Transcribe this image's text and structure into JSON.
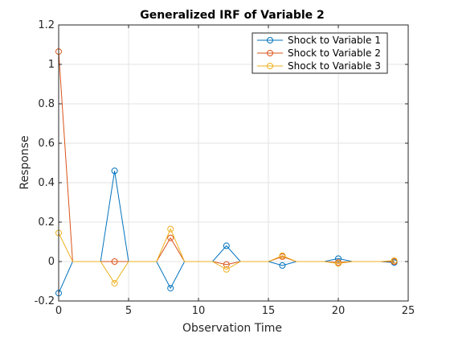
{
  "chart_data": {
    "type": "line",
    "title": "Generalized IRF of Variable 2",
    "xlabel": "Observation Time",
    "ylabel": "Response",
    "xlim": [
      0,
      25
    ],
    "ylim": [
      -0.2,
      1.2
    ],
    "xticks": [
      0,
      5,
      10,
      15,
      20,
      25
    ],
    "yticks": [
      -0.2,
      0,
      0.2,
      0.4,
      0.6,
      0.8,
      1,
      1.2
    ],
    "xtick_labels": [
      "0",
      "5",
      "10",
      "15",
      "20",
      "25"
    ],
    "ytick_labels": [
      "-0.2",
      "0",
      "0.2",
      "0.4",
      "0.6",
      "0.8",
      "1",
      "1.2"
    ],
    "grid": true,
    "legend_position": "top-right",
    "marker": "circle",
    "x": [
      0,
      1,
      2,
      3,
      4,
      5,
      6,
      7,
      8,
      9,
      10,
      11,
      12,
      13,
      14,
      15,
      16,
      17,
      18,
      19,
      20,
      21,
      22,
      23,
      24
    ],
    "series": [
      {
        "name": "Shock to Variable 1",
        "color": "#0072BD",
        "values": [
          -0.16,
          0,
          0,
          0,
          0.46,
          0,
          0,
          0,
          -0.135,
          0,
          0,
          0,
          0.08,
          0,
          0,
          0,
          -0.02,
          0,
          0,
          0,
          0.015,
          0,
          0,
          0,
          -0.005
        ]
      },
      {
        "name": "Shock to Variable 2",
        "color": "#D95319",
        "values": [
          1.065,
          0,
          0,
          0,
          0.0,
          0,
          0,
          0,
          0.12,
          0,
          0,
          0,
          -0.015,
          0,
          0,
          0,
          0.025,
          0,
          0,
          0,
          -0.005,
          0,
          0,
          0,
          0.0
        ]
      },
      {
        "name": "Shock to Variable 3",
        "color": "#EDB120",
        "values": [
          0.145,
          0,
          0,
          0,
          -0.11,
          0,
          0,
          0,
          0.165,
          0,
          0,
          0,
          -0.04,
          0,
          0,
          0,
          0.03,
          0,
          0,
          0,
          -0.01,
          0,
          0,
          0,
          0.005
        ]
      }
    ]
  }
}
